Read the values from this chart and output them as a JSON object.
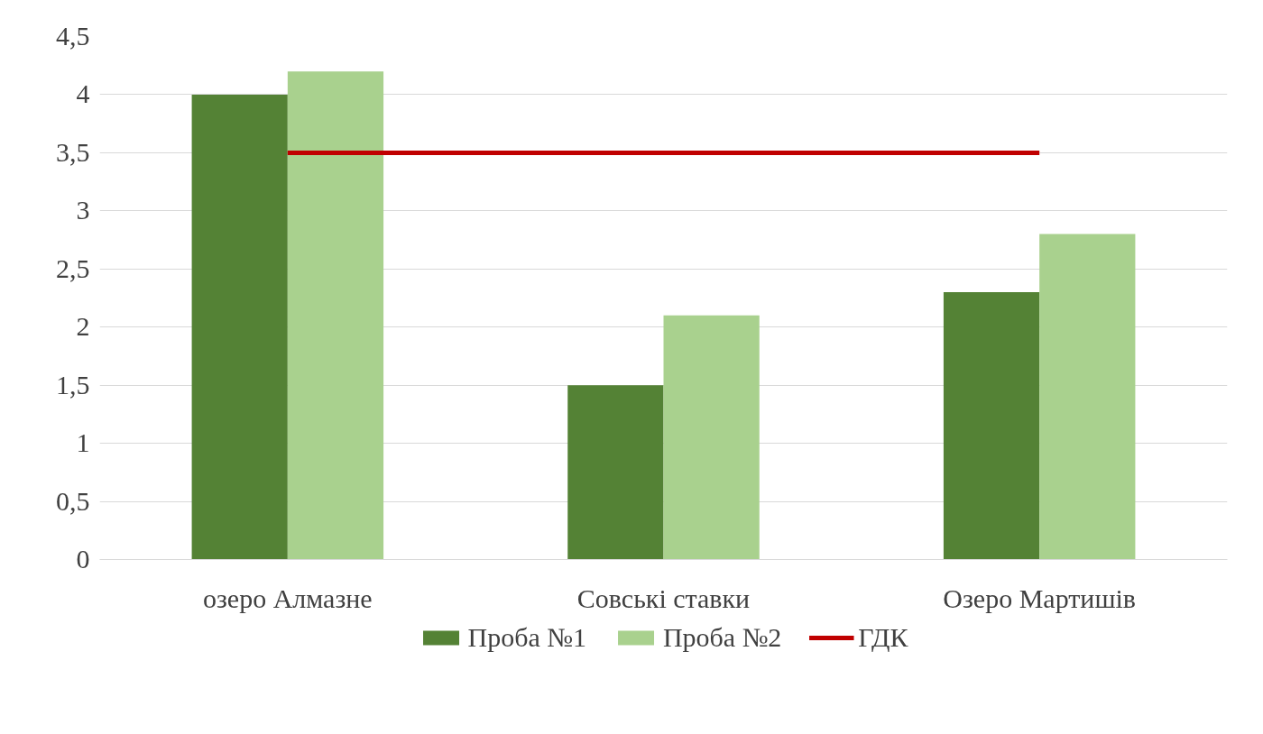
{
  "chart_data": {
    "type": "bar",
    "categories": [
      "озеро Алмазне",
      "Совські ставки",
      "Озеро Мартишів"
    ],
    "series": [
      {
        "name": "Проба №1",
        "color": "#548235",
        "values": [
          4,
          1.5,
          2.3
        ]
      },
      {
        "name": "Проба №2",
        "color": "#a9d18e",
        "values": [
          4.2,
          2.1,
          2.8
        ]
      },
      {
        "name": "ГДК",
        "color": "#c00000",
        "type": "line",
        "values": [
          3.5,
          3.5,
          3.5
        ]
      }
    ],
    "ylim": [
      0,
      4.5
    ],
    "yticks": [
      0,
      {
        "value": 0.5,
        "label": "0,5"
      },
      1,
      {
        "value": 1.5,
        "label": "1,5"
      },
      2,
      {
        "value": 2.5,
        "label": "2,5"
      },
      3,
      {
        "value": 3.5,
        "label": "3,5"
      },
      4,
      {
        "value": 4.5,
        "label": "4,5"
      }
    ],
    "grid": "y",
    "legend": "bottom"
  }
}
